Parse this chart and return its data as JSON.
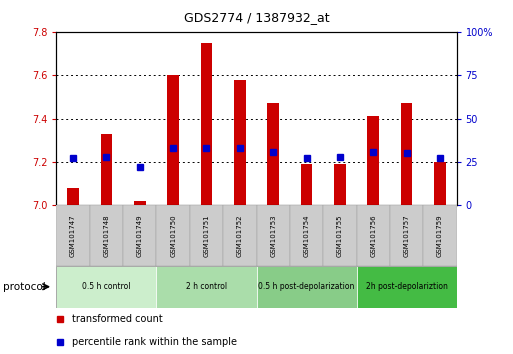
{
  "title": "GDS2774 / 1387932_at",
  "samples": [
    "GSM101747",
    "GSM101748",
    "GSM101749",
    "GSM101750",
    "GSM101751",
    "GSM101752",
    "GSM101753",
    "GSM101754",
    "GSM101755",
    "GSM101756",
    "GSM101757",
    "GSM101759"
  ],
  "transformed_count": [
    7.08,
    7.33,
    7.02,
    7.6,
    7.75,
    7.58,
    7.47,
    7.19,
    7.19,
    7.41,
    7.47,
    7.2
  ],
  "percentile_rank": [
    27,
    28,
    22,
    33,
    33,
    33,
    31,
    27,
    28,
    31,
    30,
    27
  ],
  "ylim_left": [
    7.0,
    7.8
  ],
  "ylim_right": [
    0,
    100
  ],
  "yticks_left": [
    7.0,
    7.2,
    7.4,
    7.6,
    7.8
  ],
  "yticks_right": [
    0,
    25,
    50,
    75,
    100
  ],
  "bar_color": "#cc0000",
  "dot_color": "#0000cc",
  "bar_width": 0.35,
  "groups": [
    {
      "label": "0.5 h control",
      "indices": [
        0,
        1,
        2
      ],
      "color": "#cceecc"
    },
    {
      "label": "2 h control",
      "indices": [
        3,
        4,
        5
      ],
      "color": "#aaddaa"
    },
    {
      "label": "0.5 h post-depolarization",
      "indices": [
        6,
        7,
        8
      ],
      "color": "#88cc88"
    },
    {
      "label": "2h post-depolariztion",
      "indices": [
        9,
        10,
        11
      ],
      "color": "#44bb44"
    }
  ],
  "xlabel_color": "#cc0000",
  "right_tick_color": "#0000cc",
  "protocol_label": "protocol"
}
